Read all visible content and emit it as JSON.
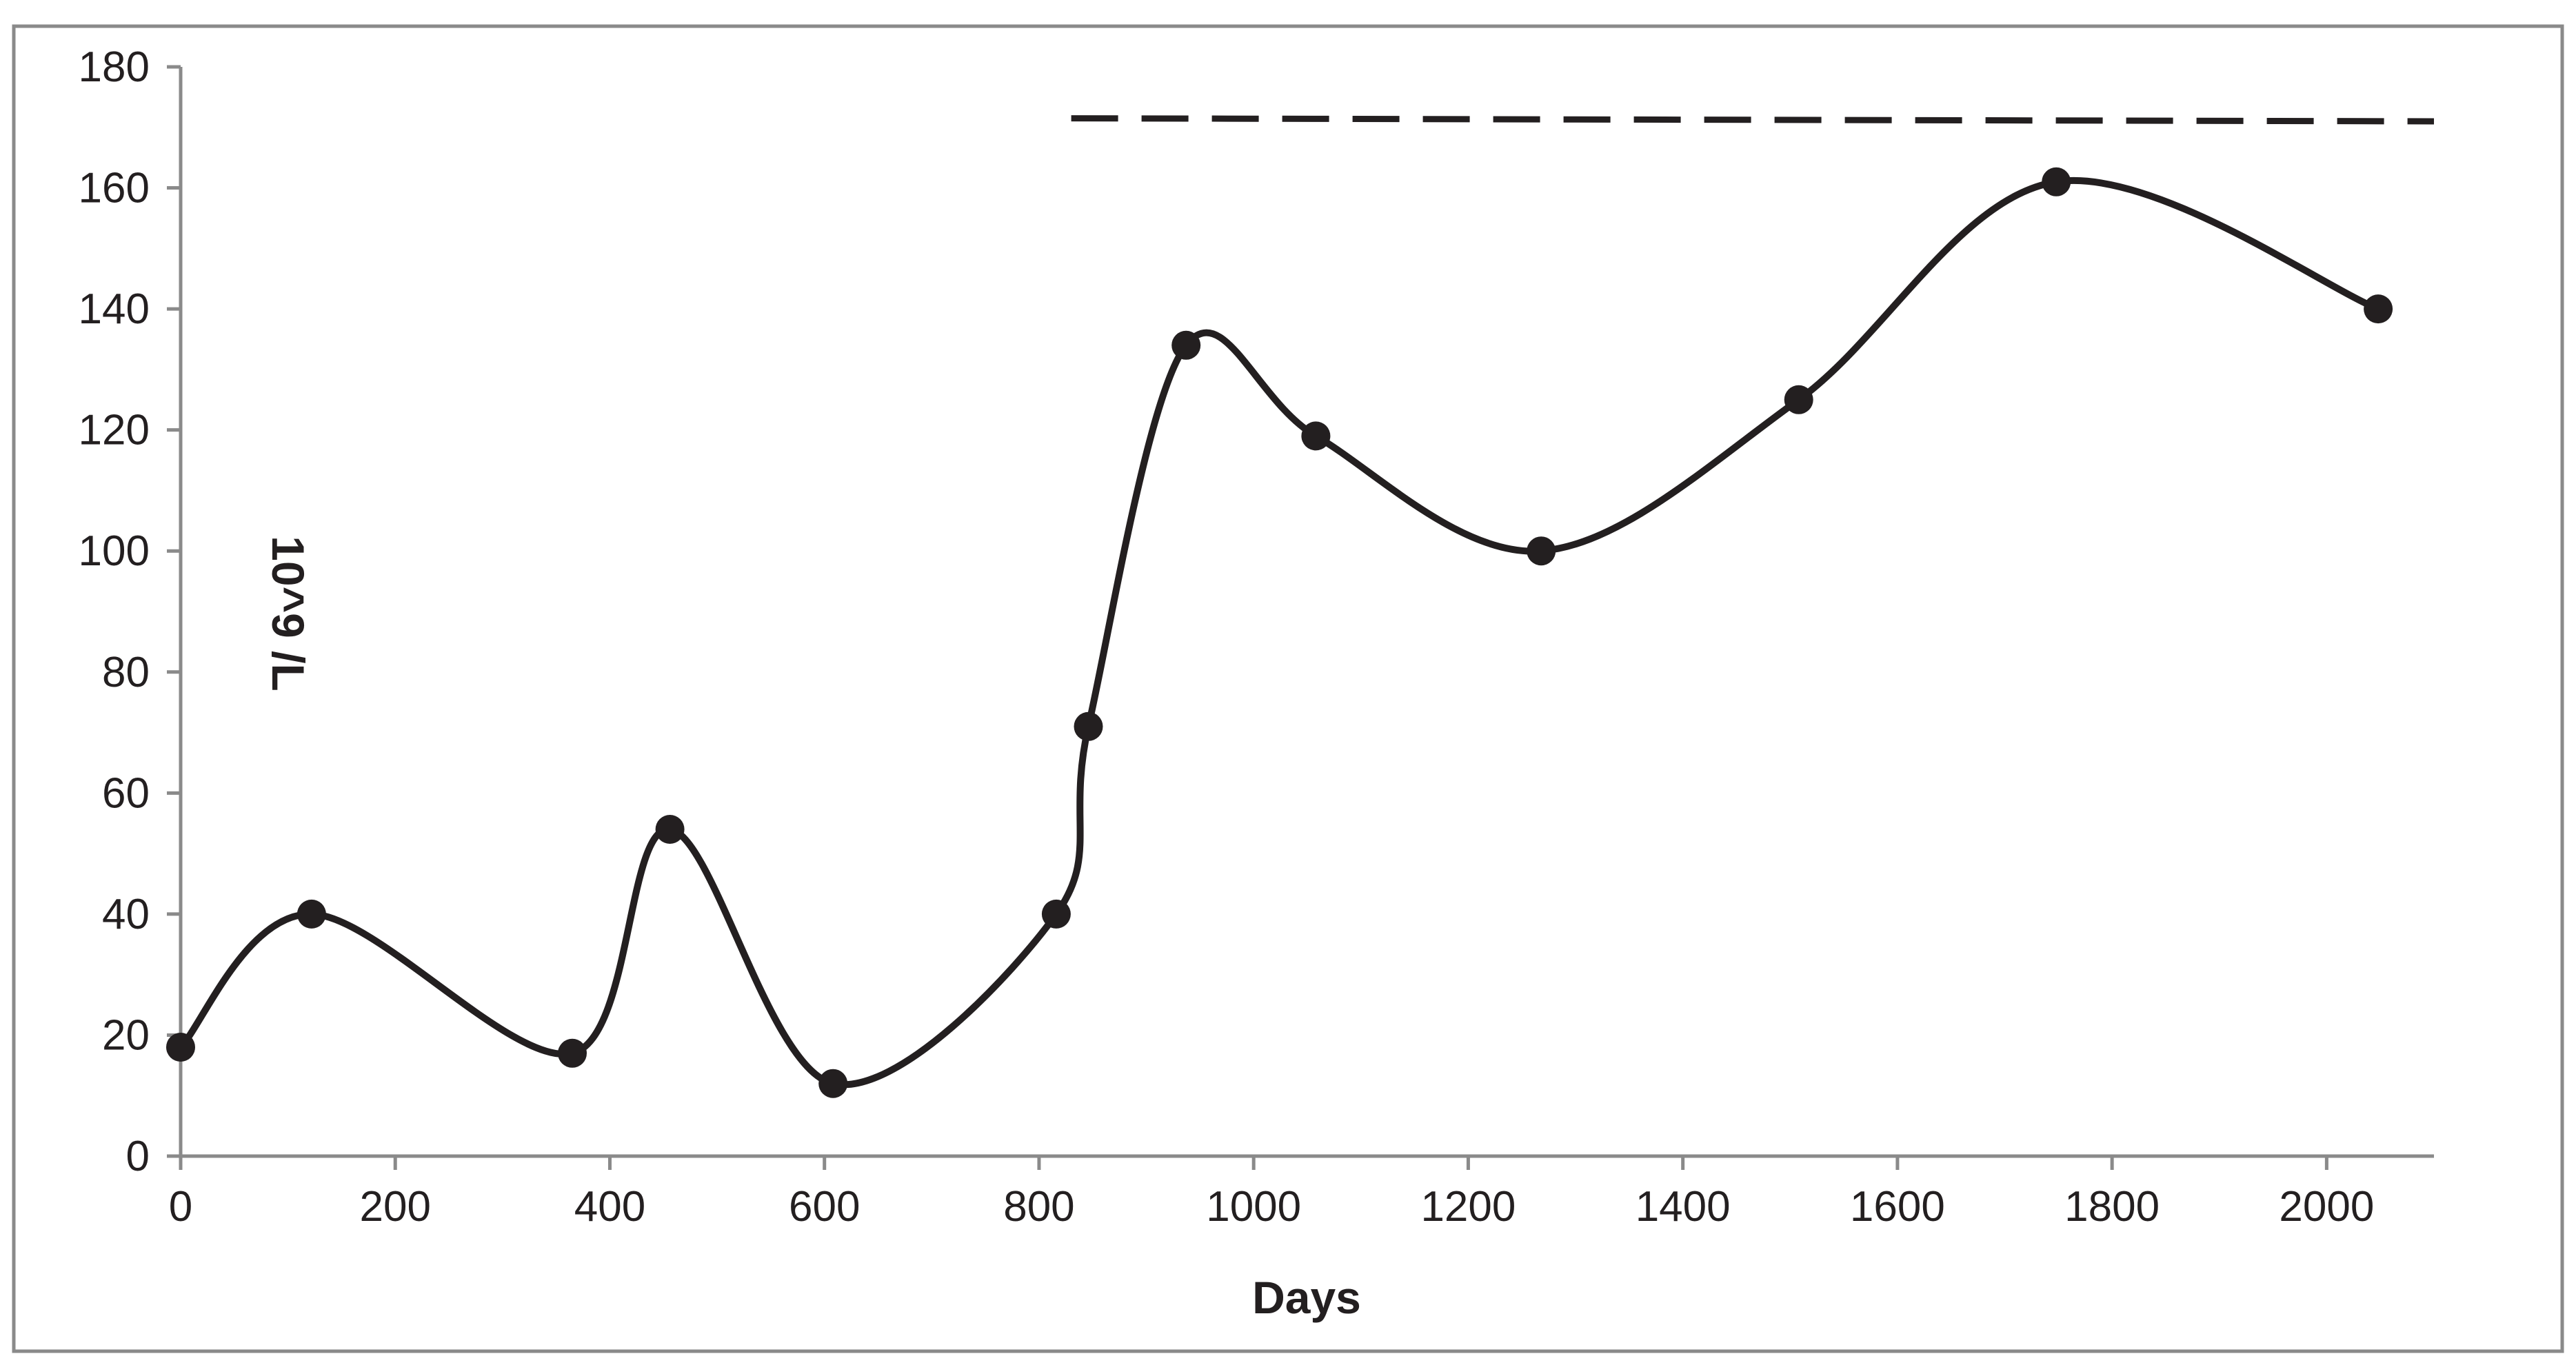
{
  "chart_data": {
    "type": "line",
    "title": "",
    "xlabel": "Days",
    "ylabel": "10^9 /L",
    "xlim": [
      0,
      2100
    ],
    "ylim": [
      0,
      180
    ],
    "x_ticks": [
      "0",
      "200",
      "400",
      "600",
      "800",
      "1000",
      "1200",
      "1400",
      "1600",
      "1800",
      "2000"
    ],
    "y_ticks": [
      "0",
      "20",
      "40",
      "60",
      "80",
      "100",
      "120",
      "140",
      "160",
      "180"
    ],
    "grid": false,
    "legend": "none",
    "series": [
      {
        "style": "solid-smooth-with-markers",
        "color": "#231f20",
        "x": [
          0,
          122,
          365,
          456,
          608,
          816,
          846,
          937,
          1058,
          1268,
          1508,
          1748,
          2048
        ],
        "y": [
          18,
          40,
          17,
          54,
          12,
          40,
          71,
          134,
          119,
          100,
          125,
          161,
          140
        ]
      },
      {
        "style": "dashed",
        "color": "#231f20",
        "x": [
          830,
          2100
        ],
        "y": [
          171.5,
          171
        ]
      }
    ]
  }
}
